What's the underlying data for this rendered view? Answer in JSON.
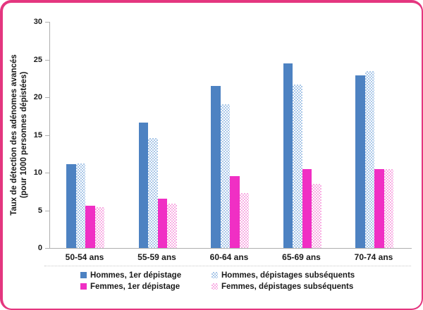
{
  "window": {
    "border_color": "#e4367f",
    "background": "#ffffff",
    "axis_color": "#aeaeae"
  },
  "chart_data": {
    "type": "bar",
    "title": "",
    "ylabel_line1": "Taux de détection des adénomes avancés",
    "ylabel_line2": "(pour 1000 personnes dépistées)",
    "xlabel": "",
    "ylim": [
      0,
      30
    ],
    "yticks": [
      0,
      5,
      10,
      15,
      20,
      25,
      30
    ],
    "grid": false,
    "legend_position": "bottom",
    "categories": [
      "50-54 ans",
      "55-59 ans",
      "60-64 ans",
      "65-69 ans",
      "70-74 ans"
    ],
    "series": [
      {
        "name": "Hommes, 1er dépistage",
        "color": "#4d82c2",
        "fill": "solid",
        "values": [
          11.1,
          16.6,
          21.5,
          24.5,
          22.9
        ]
      },
      {
        "name": "Hommes, dépistages subséquents",
        "color": "#a9c7e8",
        "fill": "checker",
        "values": [
          11.2,
          14.6,
          19.1,
          21.7,
          23.5
        ]
      },
      {
        "name": "Femmes, 1er dépistage",
        "color": "#f02fc4",
        "fill": "solid",
        "values": [
          5.6,
          6.5,
          9.5,
          10.5,
          10.5
        ]
      },
      {
        "name": "Femmes, dépistages subséquents",
        "color": "#f8ade3",
        "fill": "checker",
        "values": [
          5.4,
          5.9,
          7.3,
          8.5,
          10.5
        ]
      }
    ]
  }
}
